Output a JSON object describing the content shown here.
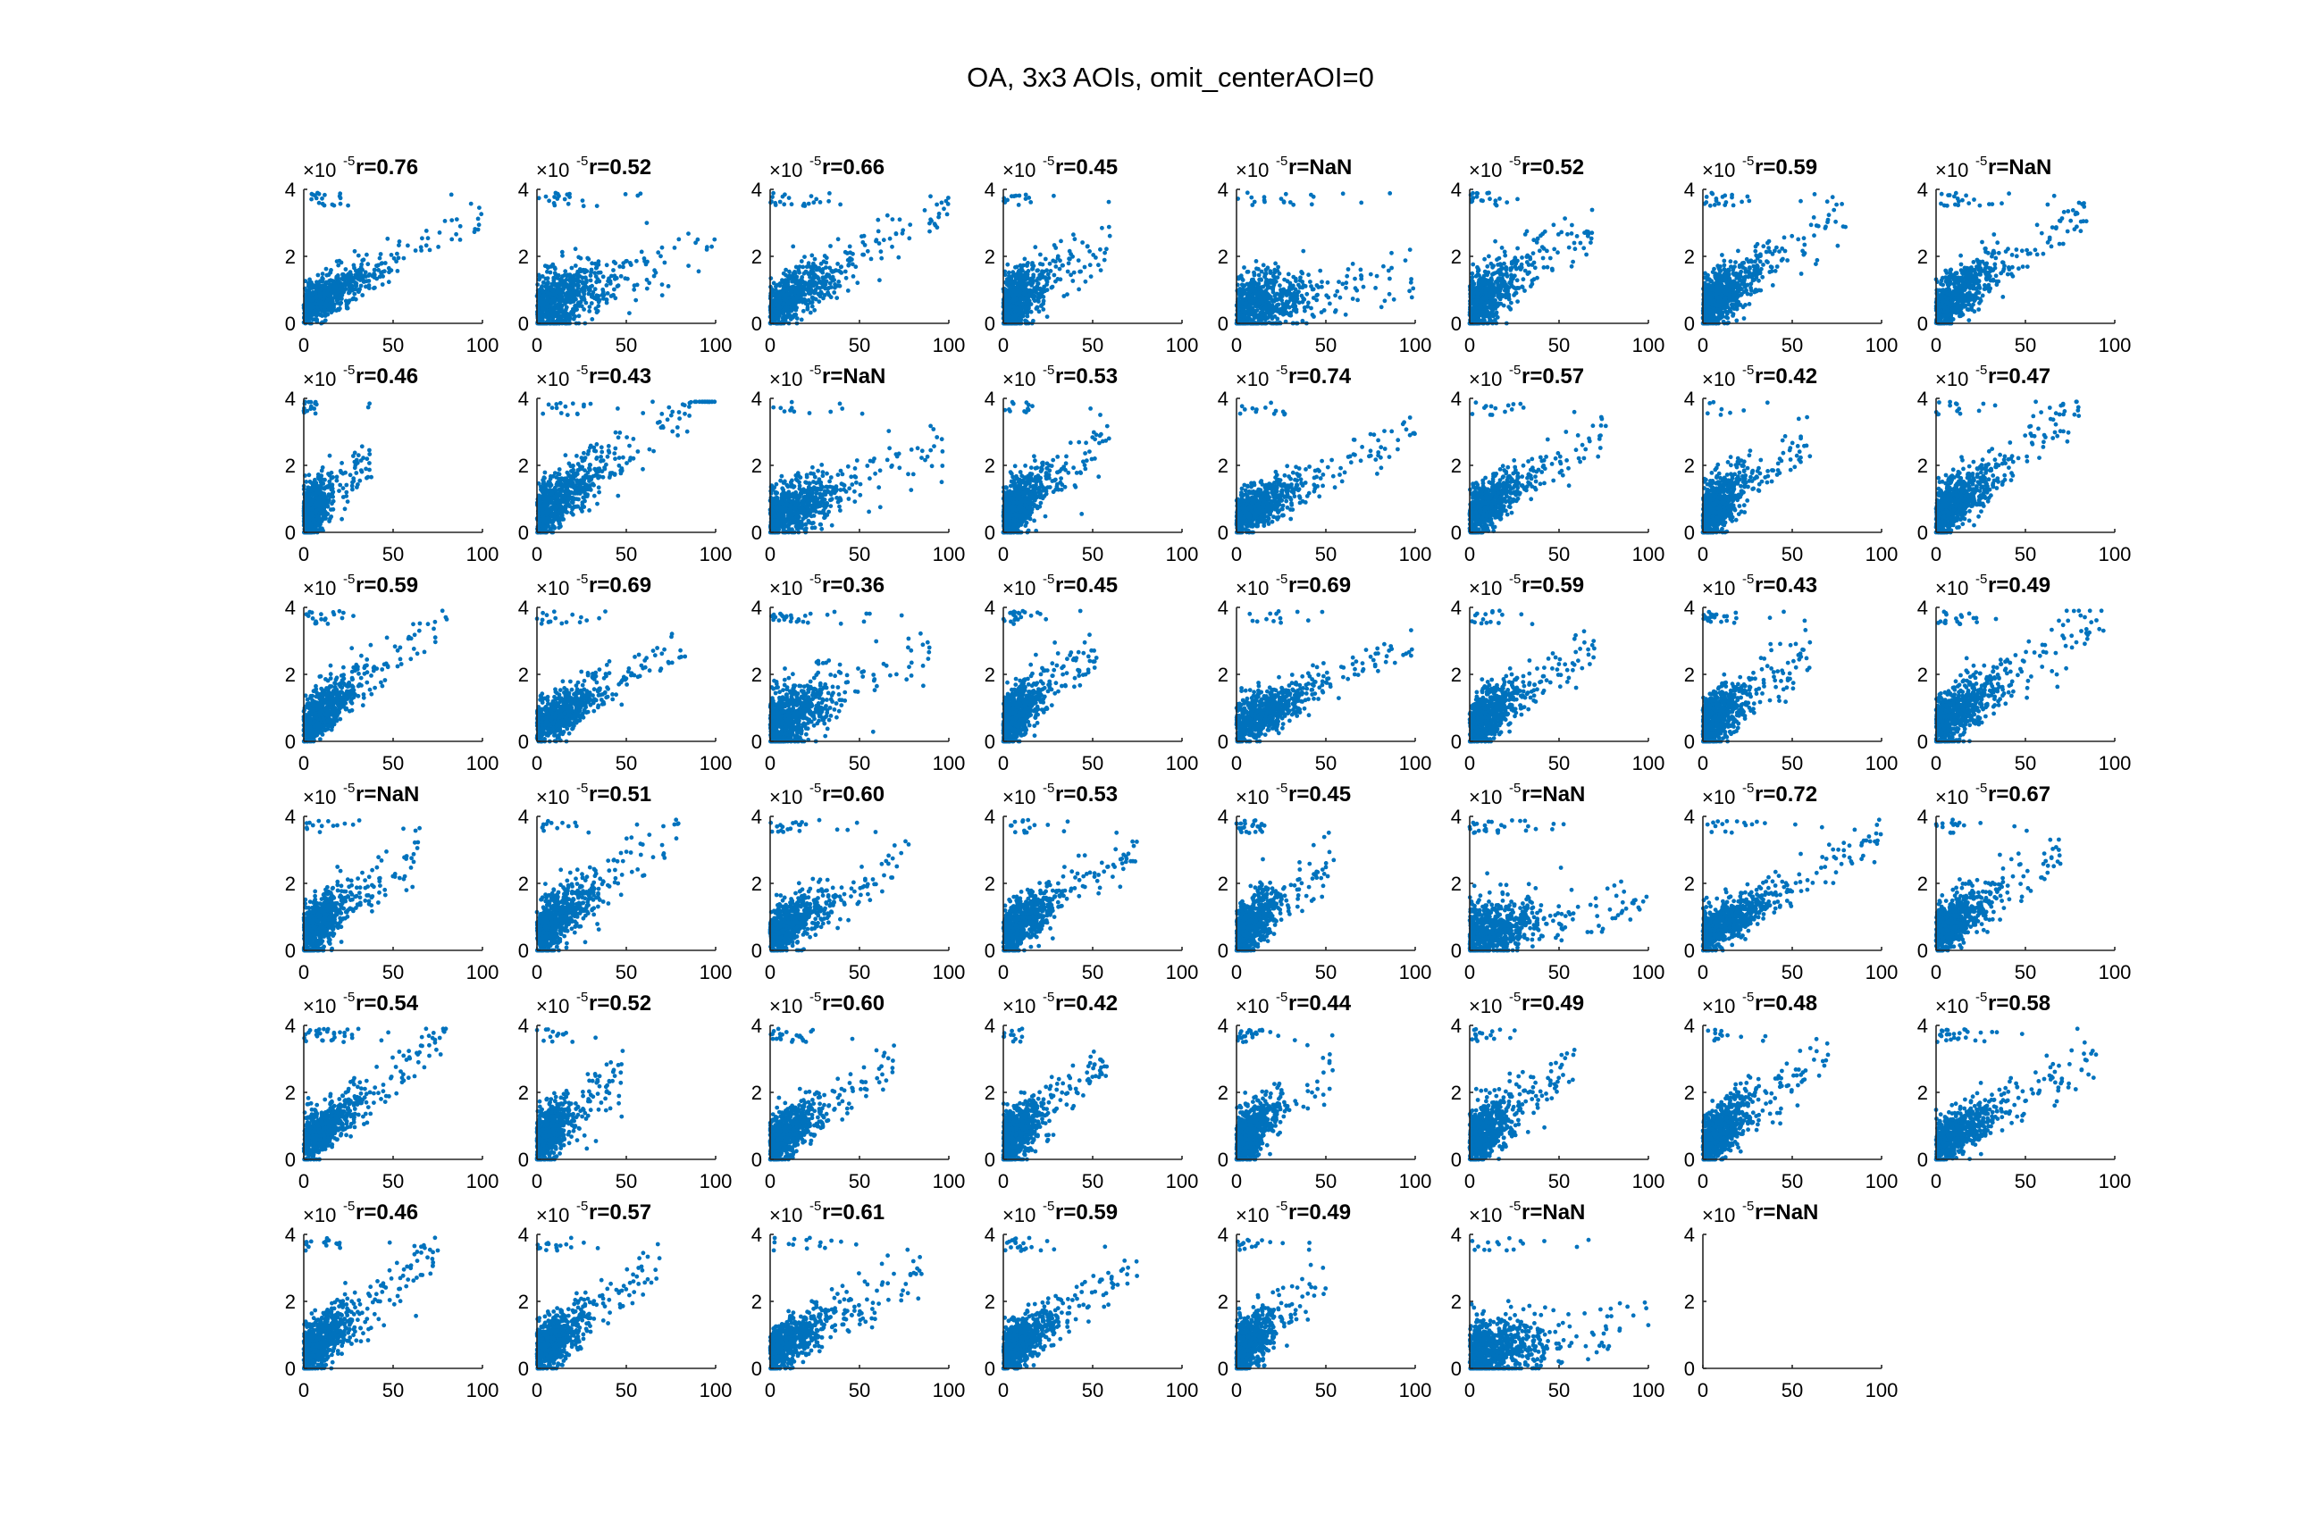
{
  "figure": {
    "title": "OA, 3x3 AOIs, omit_centerAOI=0"
  },
  "chart_data": {
    "type": "scatter",
    "layout": {
      "rows": 6,
      "cols": 8
    },
    "xlim": [
      0,
      100
    ],
    "ylim": [
      0,
      4
    ],
    "xticks": [
      "0",
      "50",
      "100"
    ],
    "yticks": [
      "0",
      "2",
      "4"
    ],
    "y_exponent": {
      "base": "×10",
      "power": "-5"
    },
    "color": "#0072BD",
    "panels": [
      {
        "label": "r=0.76",
        "xmax": 100,
        "slope": 0.028,
        "spread": 0.45
      },
      {
        "label": "r=0.52",
        "xmax": 100,
        "slope": 0.02,
        "spread": 0.8
      },
      {
        "label": "r=0.66",
        "xmax": 100,
        "slope": 0.03,
        "spread": 0.6
      },
      {
        "label": "r=0.45",
        "xmax": 60,
        "slope": 0.035,
        "spread": 0.8
      },
      {
        "label": "r=NaN",
        "xmax": 100,
        "slope": 0.01,
        "spread": 0.8
      },
      {
        "label": "r=0.52",
        "xmax": 70,
        "slope": 0.035,
        "spread": 0.7
      },
      {
        "label": "r=0.59",
        "xmax": 80,
        "slope": 0.035,
        "spread": 0.7
      },
      {
        "label": "r=NaN",
        "xmax": 85,
        "slope": 0.035,
        "spread": 0.6
      },
      {
        "label": "r=0.46",
        "xmax": 38,
        "slope": 0.045,
        "spread": 0.7
      },
      {
        "label": "r=0.43",
        "xmax": 100,
        "slope": 0.04,
        "spread": 0.7
      },
      {
        "label": "r=NaN",
        "xmax": 100,
        "slope": 0.02,
        "spread": 0.7
      },
      {
        "label": "r=0.53",
        "xmax": 60,
        "slope": 0.04,
        "spread": 0.7
      },
      {
        "label": "r=0.74",
        "xmax": 100,
        "slope": 0.025,
        "spread": 0.5
      },
      {
        "label": "r=0.57",
        "xmax": 80,
        "slope": 0.035,
        "spread": 0.6
      },
      {
        "label": "r=0.42",
        "xmax": 60,
        "slope": 0.04,
        "spread": 0.7
      },
      {
        "label": "r=0.47",
        "xmax": 80,
        "slope": 0.04,
        "spread": 0.7
      },
      {
        "label": "r=0.59",
        "xmax": 80,
        "slope": 0.04,
        "spread": 0.6
      },
      {
        "label": "r=0.69",
        "xmax": 85,
        "slope": 0.03,
        "spread": 0.5
      },
      {
        "label": "r=0.36",
        "xmax": 90,
        "slope": 0.025,
        "spread": 0.8
      },
      {
        "label": "r=0.45",
        "xmax": 55,
        "slope": 0.045,
        "spread": 0.7
      },
      {
        "label": "r=0.69",
        "xmax": 100,
        "slope": 0.025,
        "spread": 0.5
      },
      {
        "label": "r=0.59",
        "xmax": 70,
        "slope": 0.035,
        "spread": 0.6
      },
      {
        "label": "r=0.43",
        "xmax": 60,
        "slope": 0.035,
        "spread": 0.7
      },
      {
        "label": "r=0.49",
        "xmax": 95,
        "slope": 0.035,
        "spread": 0.7
      },
      {
        "label": "r=NaN",
        "xmax": 65,
        "slope": 0.04,
        "spread": 0.7
      },
      {
        "label": "r=0.51",
        "xmax": 80,
        "slope": 0.04,
        "spread": 0.7
      },
      {
        "label": "r=0.60",
        "xmax": 80,
        "slope": 0.03,
        "spread": 0.6
      },
      {
        "label": "r=0.53",
        "xmax": 75,
        "slope": 0.035,
        "spread": 0.6
      },
      {
        "label": "r=0.45",
        "xmax": 55,
        "slope": 0.04,
        "spread": 0.7
      },
      {
        "label": "r=NaN",
        "xmax": 100,
        "slope": 0.01,
        "spread": 0.8
      },
      {
        "label": "r=0.72",
        "xmax": 100,
        "slope": 0.03,
        "spread": 0.5
      },
      {
        "label": "r=0.67",
        "xmax": 70,
        "slope": 0.035,
        "spread": 0.6
      },
      {
        "label": "r=0.54",
        "xmax": 80,
        "slope": 0.04,
        "spread": 0.6
      },
      {
        "label": "r=0.52",
        "xmax": 50,
        "slope": 0.045,
        "spread": 0.7
      },
      {
        "label": "r=0.60",
        "xmax": 70,
        "slope": 0.035,
        "spread": 0.6
      },
      {
        "label": "r=0.42",
        "xmax": 60,
        "slope": 0.04,
        "spread": 0.7
      },
      {
        "label": "r=0.44",
        "xmax": 55,
        "slope": 0.04,
        "spread": 0.7
      },
      {
        "label": "r=0.49",
        "xmax": 60,
        "slope": 0.04,
        "spread": 0.7
      },
      {
        "label": "r=0.48",
        "xmax": 70,
        "slope": 0.04,
        "spread": 0.7
      },
      {
        "label": "r=0.58",
        "xmax": 90,
        "slope": 0.03,
        "spread": 0.6
      },
      {
        "label": "r=0.46",
        "xmax": 75,
        "slope": 0.04,
        "spread": 0.7
      },
      {
        "label": "r=0.57",
        "xmax": 70,
        "slope": 0.04,
        "spread": 0.6
      },
      {
        "label": "r=0.61",
        "xmax": 85,
        "slope": 0.03,
        "spread": 0.6
      },
      {
        "label": "r=0.59",
        "xmax": 75,
        "slope": 0.035,
        "spread": 0.6
      },
      {
        "label": "r=0.49",
        "xmax": 50,
        "slope": 0.045,
        "spread": 0.7
      },
      {
        "label": "r=NaN",
        "xmax": 100,
        "slope": 0.01,
        "spread": 0.8
      },
      {
        "label": "r=NaN",
        "xmax": 0,
        "slope": 0,
        "spread": 0
      }
    ]
  }
}
